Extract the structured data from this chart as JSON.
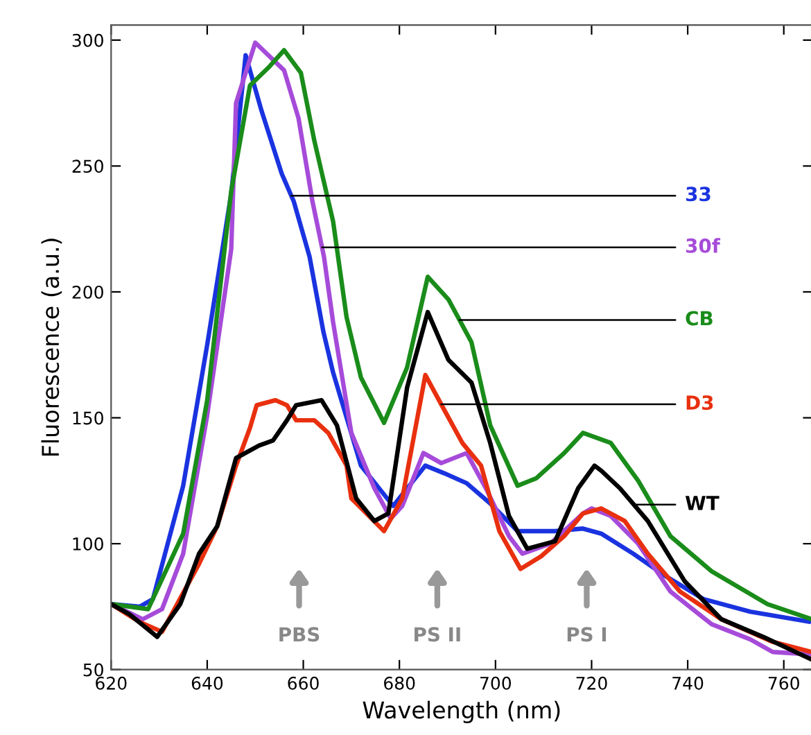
{
  "chart_data": {
    "type": "line",
    "xlabel": "Wavelength (nm)",
    "ylabel": "Fluorescence (a.u.)",
    "xlim": [
      620,
      766
    ],
    "xticks": [
      620,
      640,
      660,
      680,
      700,
      720,
      740,
      760
    ],
    "ylim": [
      50,
      306
    ],
    "yticks": [
      50,
      100,
      150,
      200,
      250,
      300
    ],
    "grid": false,
    "legend": "right",
    "marker": "none",
    "line_style": "solid",
    "annotations": [
      "PBS",
      "PS II",
      "PS I"
    ],
    "series": [
      {
        "name": "33",
        "color": "#1a33e0",
        "x": [
          620,
          626,
          628.7,
          635,
          640,
          645,
          648,
          651.3,
          655.5,
          658,
          661.3,
          664.2,
          666.2,
          672,
          678.7,
          685.4,
          689.3,
          694,
          698.9,
          704.6,
          712.4,
          718.2,
          722,
          728.7,
          735.5,
          743.3,
          753,
          765.3
        ],
        "values": [
          76,
          75,
          78,
          123,
          179,
          239,
          294,
          272,
          247,
          236,
          214,
          184,
          168,
          131,
          115,
          131,
          128,
          124,
          116,
          105,
          105,
          106,
          104,
          96,
          87,
          78,
          73,
          69
        ]
      },
      {
        "name": "30f",
        "color": "#a64bd9",
        "x": [
          620,
          626.6,
          630.6,
          635,
          640,
          645,
          646,
          650,
          656,
          659,
          661.9,
          664.3,
          666.2,
          670,
          674.8,
          678.2,
          680.6,
          685,
          688.7,
          694,
          698,
          702.8,
          705.6,
          711.4,
          718.2,
          720,
          724,
          729.7,
          736.4,
          745,
          753,
          757.7,
          766
        ],
        "values": [
          76,
          70,
          74,
          96,
          151,
          217,
          275,
          299,
          288,
          269,
          236,
          214,
          188,
          144,
          122,
          110,
          115,
          136,
          132,
          136,
          122,
          103,
          96,
          100,
          112,
          114,
          111,
          100,
          81,
          68,
          62,
          57,
          56
        ]
      },
      {
        "name": "CB",
        "color": "#1a8c1a",
        "x": [
          620,
          627.7,
          635,
          640,
          645,
          648.9,
          652.7,
          656,
          659.5,
          662.3,
          666.2,
          669,
          672,
          676.8,
          681.6,
          685.9,
          690.2,
          695,
          698.9,
          704.6,
          708.5,
          714.3,
          718.2,
          724,
          729.7,
          736.4,
          745,
          756.6,
          765.8
        ],
        "values": [
          76,
          74,
          104,
          157,
          240,
          282,
          289,
          296,
          287,
          260,
          228,
          190,
          166,
          148,
          170,
          206,
          197,
          180,
          147,
          123,
          126,
          136,
          144,
          140,
          125,
          103,
          89,
          76,
          70
        ]
      },
      {
        "name": "D3",
        "color": "#e8300f",
        "x": [
          620,
          625.8,
          630.6,
          638.3,
          642.1,
          646,
          648.9,
          650.3,
          654.2,
          656.6,
          658.5,
          662.3,
          665.2,
          669,
          670,
          676.8,
          680.6,
          685.4,
          688.8,
          693.1,
          697,
          700.8,
          705.2,
          709.5,
          714.3,
          718.2,
          722,
          726.9,
          731.7,
          738.4,
          747,
          757.7,
          765.8
        ],
        "values": [
          76,
          69,
          65,
          92,
          107,
          131,
          146,
          155,
          157,
          155,
          149,
          149,
          144,
          131,
          118,
          105,
          118,
          167,
          155,
          140,
          131,
          105,
          90,
          95,
          103,
          112,
          114,
          109,
          96,
          81,
          70,
          61,
          57
        ]
      },
      {
        "name": "WT",
        "color": "#000000",
        "x": [
          620,
          623.8,
          629.6,
          634.4,
          638.3,
          642.1,
          646,
          650.8,
          653.7,
          656.6,
          658.5,
          663.8,
          667,
          671,
          674.8,
          677.7,
          681.6,
          685.9,
          690.2,
          695,
          698.9,
          702.8,
          706.6,
          712.4,
          717.2,
          720.6,
          722,
          725.9,
          731.7,
          739.4,
          747,
          755.7,
          765.8
        ],
        "values": [
          76,
          72,
          63,
          76,
          96,
          107,
          134,
          139,
          141,
          149,
          155,
          157,
          147,
          118,
          109,
          112,
          162,
          192,
          173,
          164,
          140,
          111,
          98,
          101,
          122,
          131,
          129,
          122,
          109,
          85,
          70,
          63,
          54
        ]
      }
    ]
  }
}
